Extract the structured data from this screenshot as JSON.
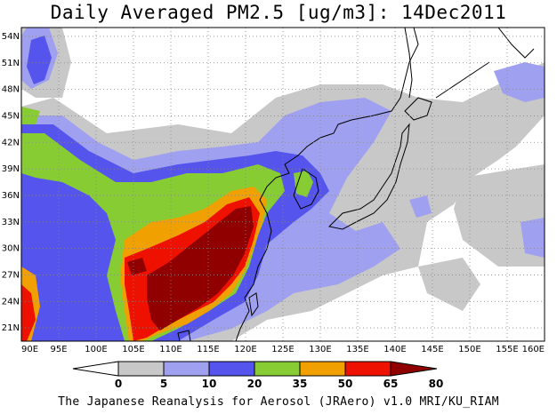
{
  "title": "Daily Averaged PM2.5 [ug/m3]: 14Dec2011",
  "footer": "The Japanese Reanalysis for Aerosol (JRAero) v1.0 MRI/KU_RIAM",
  "map": {
    "lon_range": [
      90,
      160
    ],
    "lat_range": [
      19.5,
      55
    ],
    "x_ticks": [
      "90E",
      "95E",
      "100E",
      "105E",
      "110E",
      "115E",
      "120E",
      "125E",
      "130E",
      "135E",
      "140E",
      "145E",
      "150E",
      "155E",
      "160E"
    ],
    "y_ticks": [
      "21N",
      "24N",
      "27N",
      "30N",
      "33N",
      "36N",
      "39N",
      "42N",
      "45N",
      "48N",
      "51N",
      "54N"
    ],
    "grid": true
  },
  "legend": {
    "labels": [
      "0",
      "5",
      "10",
      "20",
      "35",
      "50",
      "65",
      "80"
    ],
    "colors": [
      "#ffffff",
      "#c8c8c8",
      "#a0a0f0",
      "#5555ee",
      "#88cc33",
      "#f0a000",
      "#ee1100",
      "#900000"
    ]
  },
  "colors": {
    "lev1": "#c8c8c8",
    "lev2": "#a0a0f0",
    "lev3": "#5555ee",
    "lev4": "#88cc33",
    "lev5": "#f0a000",
    "lev6": "#ee1100",
    "lev7": "#900000",
    "coast": "#000000",
    "grid": "#888888"
  }
}
